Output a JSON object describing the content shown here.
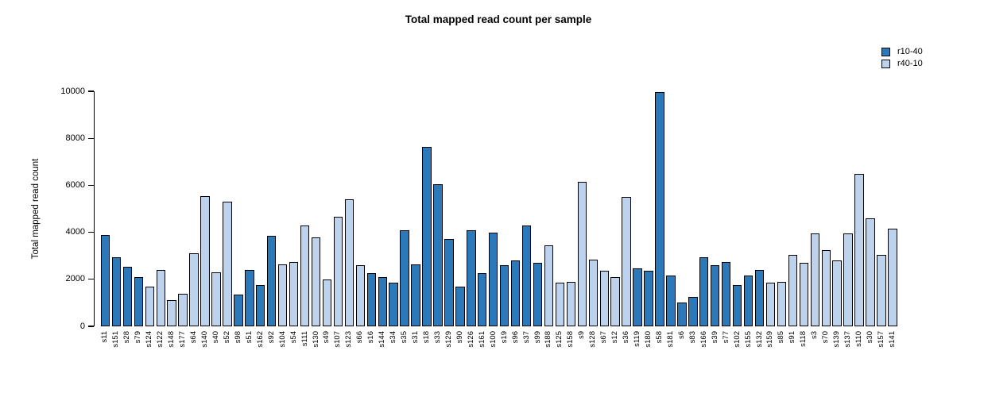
{
  "chart_data": {
    "type": "bar",
    "title": "Total mapped read count per sample",
    "xlabel": "",
    "ylabel": "Total mapped read count",
    "ylim": [
      0,
      10000
    ],
    "yticks": [
      0,
      2000,
      4000,
      6000,
      8000,
      10000
    ],
    "grid": false,
    "legend_position": "top-right",
    "bar_border_color": "#000000",
    "series_colors": {
      "r10-40": "#2b79b8",
      "r40-10": "#bdd2ec"
    },
    "legend": [
      {
        "label": "r10-40",
        "color": "#2b79b8"
      },
      {
        "label": "r40-10",
        "color": "#bdd2ec"
      }
    ],
    "samples": [
      {
        "label": "s11",
        "group": "r10-40",
        "value": 3900
      },
      {
        "label": "s151",
        "group": "r10-40",
        "value": 2950
      },
      {
        "label": "s28",
        "group": "r10-40",
        "value": 2550
      },
      {
        "label": "s79",
        "group": "r10-40",
        "value": 2100
      },
      {
        "label": "s124",
        "group": "r40-10",
        "value": 1700
      },
      {
        "label": "s122",
        "group": "r40-10",
        "value": 2400
      },
      {
        "label": "s148",
        "group": "r40-10",
        "value": 1100
      },
      {
        "label": "s177",
        "group": "r40-10",
        "value": 1400
      },
      {
        "label": "s64",
        "group": "r40-10",
        "value": 3100
      },
      {
        "label": "s140",
        "group": "r40-10",
        "value": 5550
      },
      {
        "label": "s40",
        "group": "r40-10",
        "value": 2300
      },
      {
        "label": "s52",
        "group": "r40-10",
        "value": 5300
      },
      {
        "label": "s98",
        "group": "r10-40",
        "value": 1350
      },
      {
        "label": "s51",
        "group": "r10-40",
        "value": 2400
      },
      {
        "label": "s162",
        "group": "r10-40",
        "value": 1750
      },
      {
        "label": "s92",
        "group": "r10-40",
        "value": 3850
      },
      {
        "label": "s104",
        "group": "r40-10",
        "value": 2650
      },
      {
        "label": "s54",
        "group": "r40-10",
        "value": 2750
      },
      {
        "label": "s111",
        "group": "r40-10",
        "value": 4300
      },
      {
        "label": "s130",
        "group": "r40-10",
        "value": 3800
      },
      {
        "label": "s49",
        "group": "r40-10",
        "value": 2000
      },
      {
        "label": "s107",
        "group": "r40-10",
        "value": 4650
      },
      {
        "label": "s123",
        "group": "r40-10",
        "value": 5400
      },
      {
        "label": "s66",
        "group": "r40-10",
        "value": 2600
      },
      {
        "label": "s16",
        "group": "r10-40",
        "value": 2250
      },
      {
        "label": "s144",
        "group": "r10-40",
        "value": 2100
      },
      {
        "label": "s34",
        "group": "r10-40",
        "value": 1850
      },
      {
        "label": "s35",
        "group": "r10-40",
        "value": 4100
      },
      {
        "label": "s31",
        "group": "r10-40",
        "value": 2650
      },
      {
        "label": "s18",
        "group": "r10-40",
        "value": 7650
      },
      {
        "label": "s33",
        "group": "r10-40",
        "value": 6050
      },
      {
        "label": "s129",
        "group": "r10-40",
        "value": 3700
      },
      {
        "label": "s90",
        "group": "r10-40",
        "value": 1700
      },
      {
        "label": "s126",
        "group": "r10-40",
        "value": 4100
      },
      {
        "label": "s161",
        "group": "r10-40",
        "value": 2250
      },
      {
        "label": "s100",
        "group": "r10-40",
        "value": 4000
      },
      {
        "label": "s19",
        "group": "r10-40",
        "value": 2600
      },
      {
        "label": "s96",
        "group": "r10-40",
        "value": 2800
      },
      {
        "label": "s37",
        "group": "r10-40",
        "value": 4300
      },
      {
        "label": "s99",
        "group": "r10-40",
        "value": 2700
      },
      {
        "label": "s188",
        "group": "r40-10",
        "value": 3450
      },
      {
        "label": "s125",
        "group": "r40-10",
        "value": 1850
      },
      {
        "label": "s158",
        "group": "r40-10",
        "value": 1900
      },
      {
        "label": "s9",
        "group": "r40-10",
        "value": 6150
      },
      {
        "label": "s128",
        "group": "r40-10",
        "value": 2850
      },
      {
        "label": "s67",
        "group": "r40-10",
        "value": 2350
      },
      {
        "label": "s12",
        "group": "r40-10",
        "value": 2100
      },
      {
        "label": "s36",
        "group": "r40-10",
        "value": 5500
      },
      {
        "label": "s119",
        "group": "r10-40",
        "value": 2450
      },
      {
        "label": "s180",
        "group": "r10-40",
        "value": 2350
      },
      {
        "label": "s58",
        "group": "r10-40",
        "value": 9950
      },
      {
        "label": "s181",
        "group": "r10-40",
        "value": 2150
      },
      {
        "label": "s6",
        "group": "r10-40",
        "value": 1000
      },
      {
        "label": "s83",
        "group": "r10-40",
        "value": 1250
      },
      {
        "label": "s166",
        "group": "r10-40",
        "value": 2950
      },
      {
        "label": "s39",
        "group": "r10-40",
        "value": 2600
      },
      {
        "label": "s77",
        "group": "r10-40",
        "value": 2750
      },
      {
        "label": "s102",
        "group": "r10-40",
        "value": 1750
      },
      {
        "label": "s155",
        "group": "r10-40",
        "value": 2150
      },
      {
        "label": "s132",
        "group": "r10-40",
        "value": 2400
      },
      {
        "label": "s159",
        "group": "r40-10",
        "value": 1850
      },
      {
        "label": "s85",
        "group": "r40-10",
        "value": 1900
      },
      {
        "label": "s91",
        "group": "r40-10",
        "value": 3050
      },
      {
        "label": "s118",
        "group": "r40-10",
        "value": 2700
      },
      {
        "label": "s3",
        "group": "r40-10",
        "value": 3950
      },
      {
        "label": "s70",
        "group": "r40-10",
        "value": 3250
      },
      {
        "label": "s139",
        "group": "r40-10",
        "value": 2800
      },
      {
        "label": "s137",
        "group": "r40-10",
        "value": 3950
      },
      {
        "label": "s110",
        "group": "r40-10",
        "value": 6500
      },
      {
        "label": "s30",
        "group": "r40-10",
        "value": 4600
      },
      {
        "label": "s157",
        "group": "r40-10",
        "value": 3050
      },
      {
        "label": "s141",
        "group": "r40-10",
        "value": 4150
      }
    ]
  }
}
